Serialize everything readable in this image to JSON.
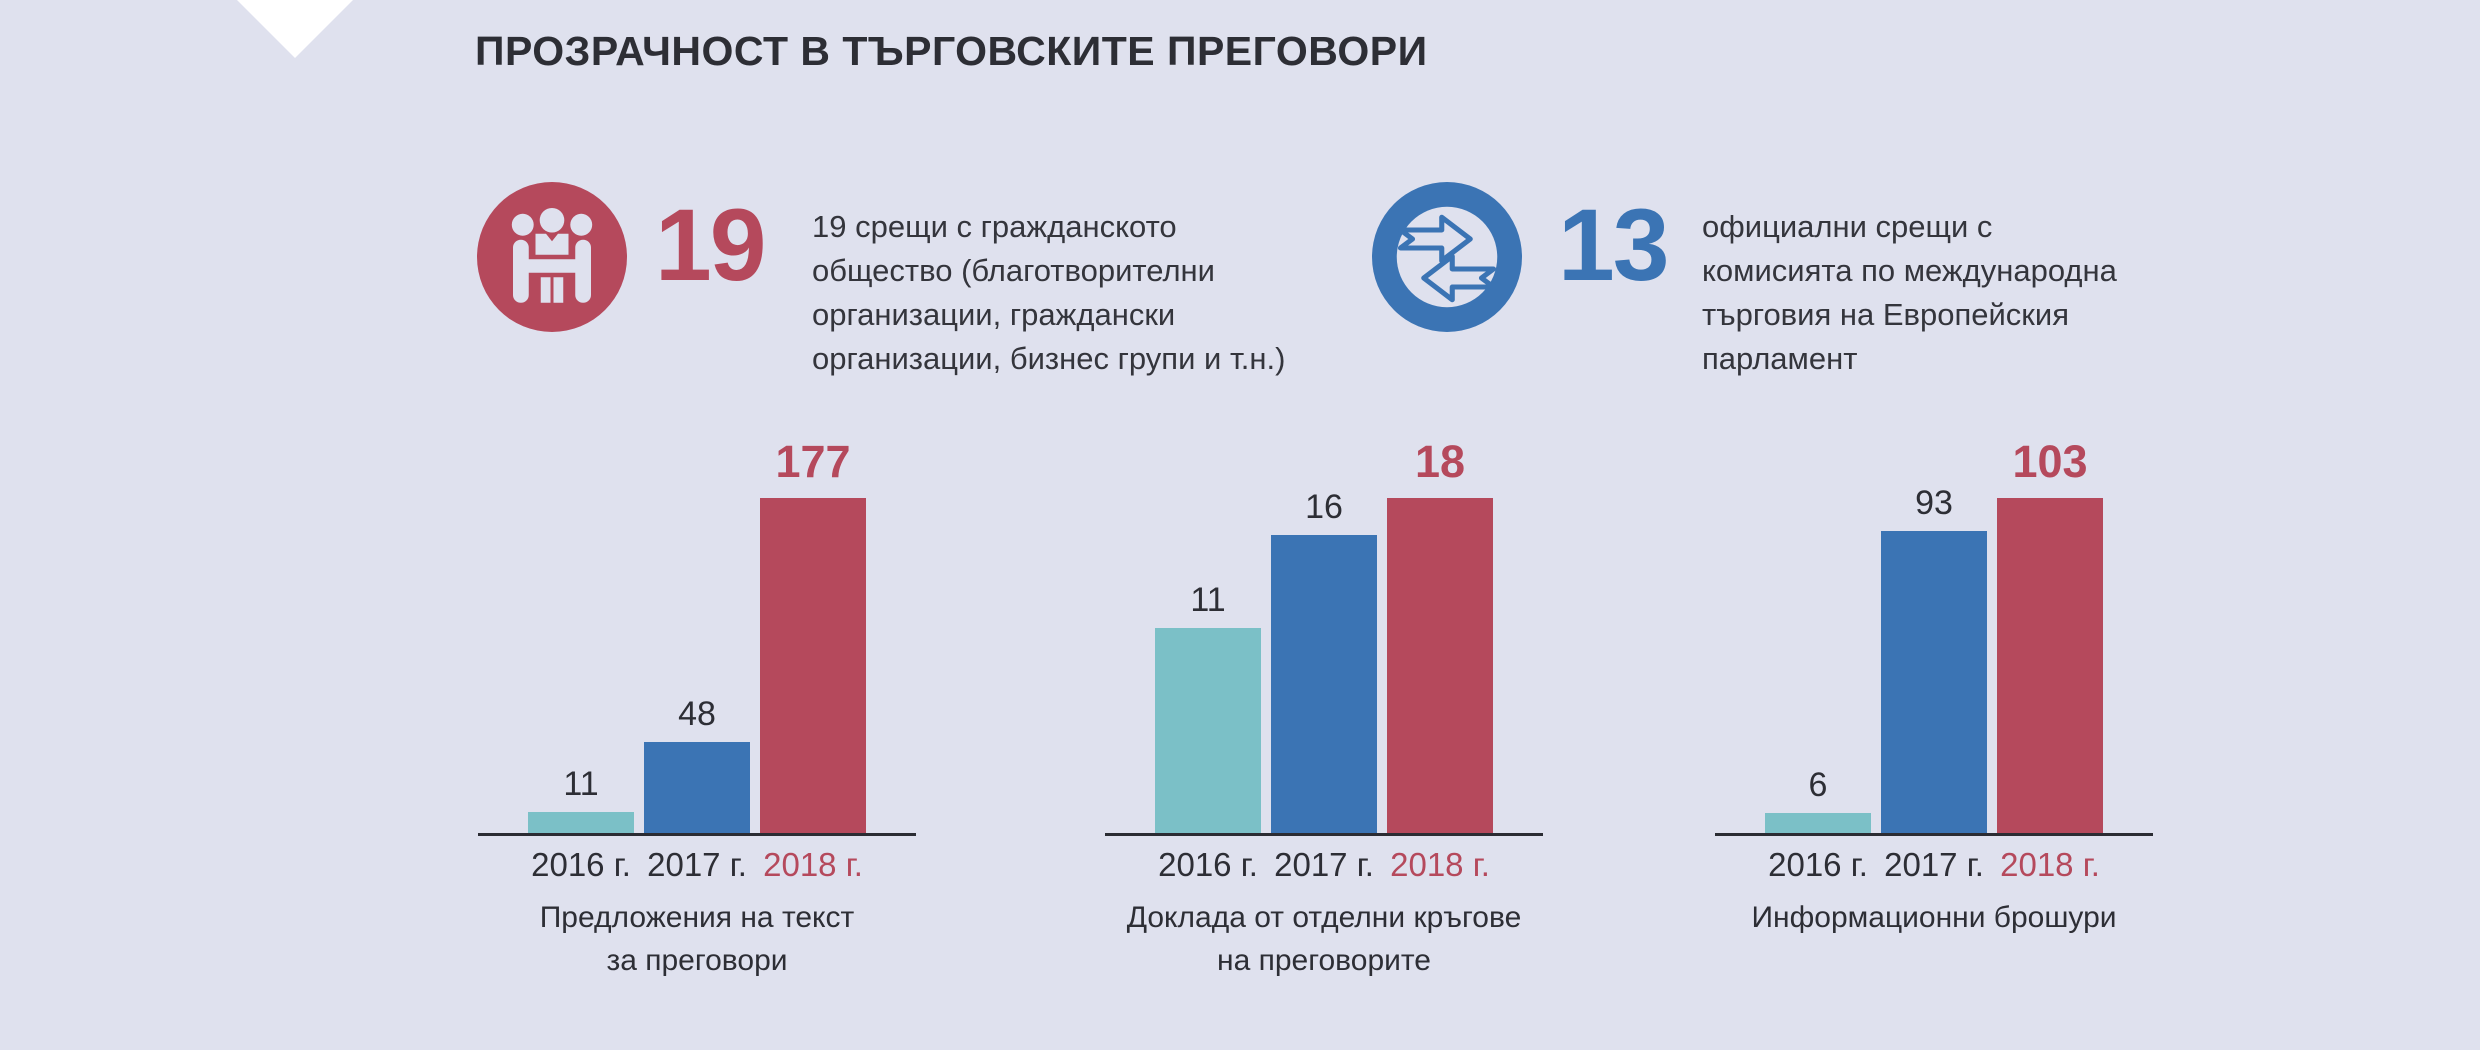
{
  "page": {
    "title": "ПРОЗРАЧНОСТ В ТЪРГОВСКИТЕ ПРЕГОВОРИ"
  },
  "colors": {
    "background": "#dfe1ee",
    "accent_red": "#b5495c",
    "accent_blue": "#3b74b4",
    "accent_teal": "#7bc0c7",
    "text_dark": "#2d2e35",
    "axis": "#2b2c33",
    "triangle": "#ffffff"
  },
  "stats": [
    {
      "icon": "meeting-people-icon",
      "value": "19",
      "description": "19 срещи с гражданското общество (благотворителни организации, граждански организации, бизнес групи и т.н.)",
      "description_lines": [
        "19 срещи с гражданското",
        "общество (благотворителни",
        "организации, граждански",
        "организации, бизнес групи и т.н.)"
      ]
    },
    {
      "icon": "exchange-arrows-icon",
      "value": "13",
      "description": "официални срещи с комисията по международна търговия на Европейския парламент",
      "description_lines": [
        "официални срещи с",
        "комисията по международна",
        "търговия на Европейския",
        "парламент"
      ]
    }
  ],
  "chart_data": [
    {
      "type": "bar",
      "title": "Предложения на текст за преговори",
      "title_lines": [
        "Предложения на текст",
        "за преговори"
      ],
      "categories": [
        "2016 г.",
        "2017 г.",
        "2018 г."
      ],
      "values": [
        11,
        48,
        177
      ],
      "series_colors": [
        "#7bc0c7",
        "#3b74b4",
        "#b5495c"
      ],
      "emphasis_index": 2,
      "ylim": [
        0,
        177
      ],
      "grid": false,
      "legend": "none"
    },
    {
      "type": "bar",
      "title": "Доклада от отделни кръгове на преговорите",
      "title_lines": [
        "Доклада от отделни кръгове",
        "на преговорите"
      ],
      "categories": [
        "2016 г.",
        "2017 г.",
        "2018 г."
      ],
      "values": [
        11,
        16,
        18
      ],
      "series_colors": [
        "#7bc0c7",
        "#3b74b4",
        "#b5495c"
      ],
      "emphasis_index": 2,
      "ylim": [
        0,
        18
      ],
      "grid": false,
      "legend": "none"
    },
    {
      "type": "bar",
      "title": "Информационни брошури",
      "title_lines": [
        "Информационни брошури"
      ],
      "categories": [
        "2016 г.",
        "2017 г.",
        "2018 г."
      ],
      "values": [
        6,
        93,
        103
      ],
      "series_colors": [
        "#7bc0c7",
        "#3b74b4",
        "#b5495c"
      ],
      "emphasis_index": 2,
      "ylim": [
        0,
        103
      ],
      "grid": false,
      "legend": "none"
    }
  ]
}
